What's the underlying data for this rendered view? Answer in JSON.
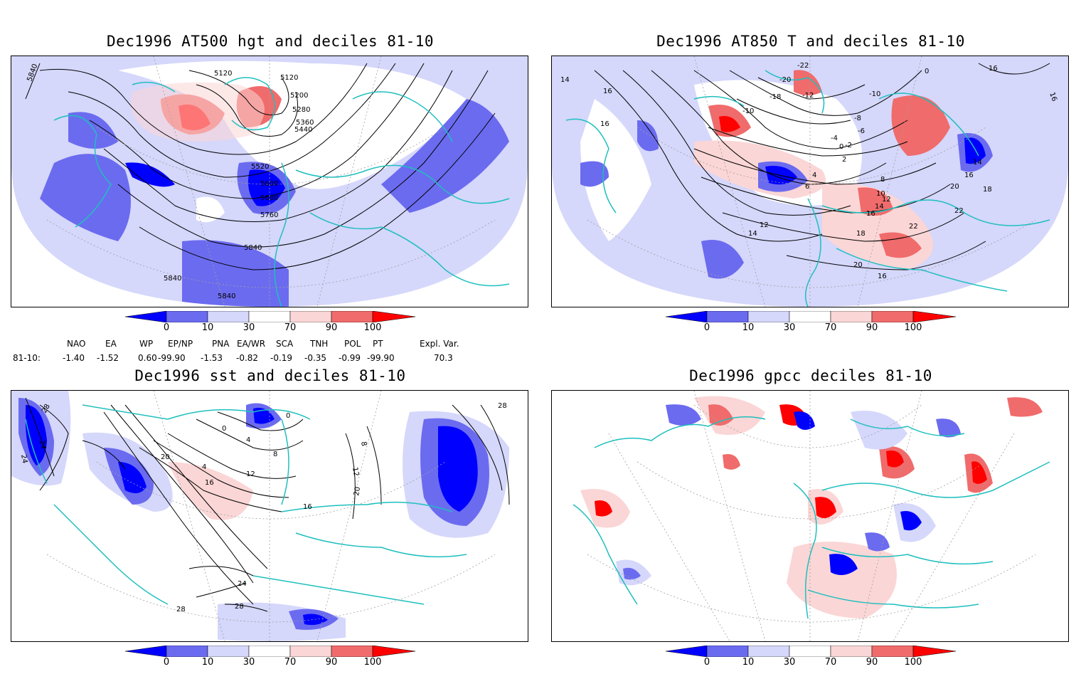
{
  "panels": {
    "p1": {
      "title": "Dec1996 AT500 hgt and deciles 81-10",
      "contour_labels": [
        "5840",
        "5120",
        "5120",
        "5200",
        "5280",
        "5360",
        "5440",
        "5520",
        "5600",
        "5680",
        "5760",
        "5840",
        "5840",
        "5840"
      ]
    },
    "p2": {
      "title": "Dec1996 AT850 T and deciles 81-10",
      "contour_labels": [
        "14",
        "16",
        "16",
        "-22",
        "-20",
        "-18",
        "-12",
        "-10",
        "-10",
        "-8",
        "-6",
        "-4",
        "0",
        "-2",
        "2",
        "0",
        "4",
        "6",
        "8",
        "10",
        "12",
        "14",
        "16",
        "18",
        "20",
        "22",
        "22",
        "16",
        "14",
        "16",
        "18",
        "16",
        "12",
        "14",
        "20",
        "16"
      ]
    },
    "p3": {
      "title": "Dec1996 sst and deciles 81-10",
      "contour_labels": [
        "28",
        "24",
        "24",
        "20",
        "0",
        "0",
        "4",
        "8",
        "4",
        "12",
        "16",
        "16",
        "12",
        "8",
        "20",
        "28",
        "24",
        "28",
        "28"
      ]
    },
    "p4": {
      "title": "Dec1996 gpcc deciles 81-10",
      "contour_labels": []
    }
  },
  "colorbar": {
    "labels": [
      "0",
      "10",
      "30",
      "70",
      "90",
      "100"
    ],
    "colors": {
      "dark_blue": "#0000ff",
      "mid_blue": "#6b6bf0",
      "light_blue": "#d5d7fb",
      "white": "#ffffff",
      "light_red": "#fbd6d6",
      "mid_red": "#f06b6b",
      "dark_red": "#ff0000"
    }
  },
  "indices": {
    "headers": [
      "NAO",
      "EA",
      "WP",
      "EP/NP",
      "PNA",
      "EA/WR",
      "SCA",
      "TNH",
      "POL",
      "PT",
      "Expl. Var."
    ],
    "row_label": "81-10:",
    "values": [
      "-1.40",
      "-1.52",
      "0.60",
      "-99.90",
      "-1.53",
      "-0.82",
      "-0.19",
      "-0.35",
      "-0.99",
      "-99.90",
      "70.3"
    ]
  },
  "colors": {
    "coastline": "#1fbfbf",
    "contour": "#000000",
    "grid": "#a0a0a0"
  }
}
